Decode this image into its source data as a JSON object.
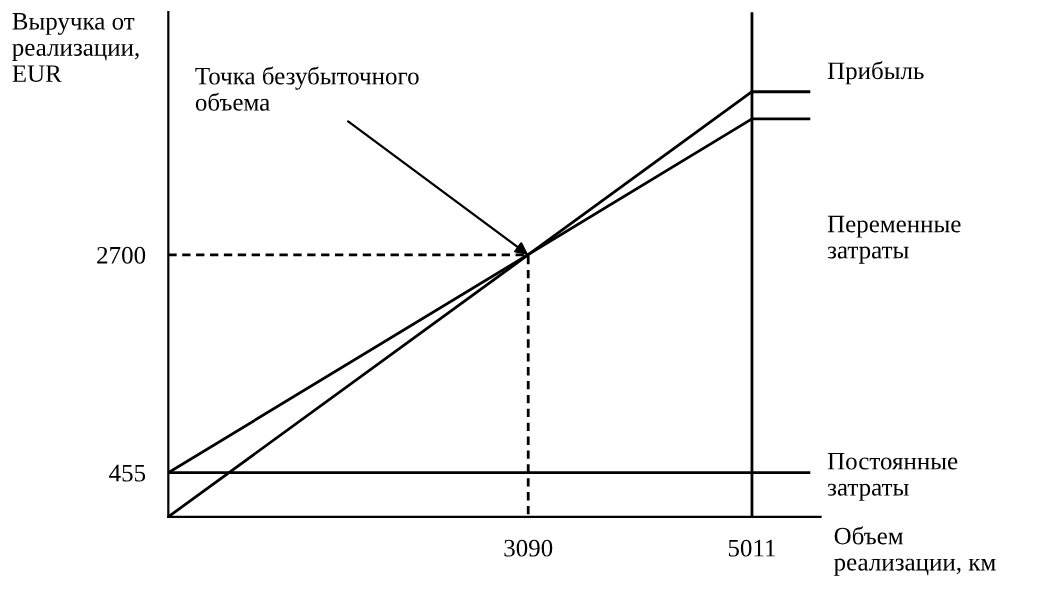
{
  "chart_data": {
    "type": "line",
    "xlabel": "Объем\nреализации, км",
    "ylabel": "Выручка от\nреализации,\nEUR",
    "xlim": [
      0,
      5600
    ],
    "ylim": [
      0,
      5200
    ],
    "xticks": [
      3090,
      5011
    ],
    "yticks": [
      455,
      2700
    ],
    "grid": false,
    "legend": false,
    "marker": "none",
    "series": [
      {
        "color": "#000000",
        "x": [
          0,
          5011,
          5500
        ],
        "values": [
          0,
          4380,
          4380
        ]
      },
      {
        "color": "#000000",
        "x": [
          0,
          5011,
          5500
        ],
        "values": [
          455,
          4100,
          4100
        ]
      },
      {
        "color": "#000000",
        "x": [
          0,
          5011,
          5500
        ],
        "values": [
          455,
          455,
          455
        ]
      },
      {
        "color": "#000000",
        "x": [
          0,
          3090,
          3090
        ],
        "values": [
          2700,
          2700,
          0
        ],
        "line_style": "dashed"
      }
    ],
    "ref_lines": [
      {
        "axis": "x",
        "value": 5011,
        "color": "#000000",
        "line_style": "solid"
      }
    ],
    "annotations": [
      {
        "text": "Точка безубыточного\nобъема",
        "x": 3090,
        "y": 2700
      },
      "Прибыль",
      "Переменные\nзатраты",
      "Постоянные\nзатраты"
    ]
  }
}
